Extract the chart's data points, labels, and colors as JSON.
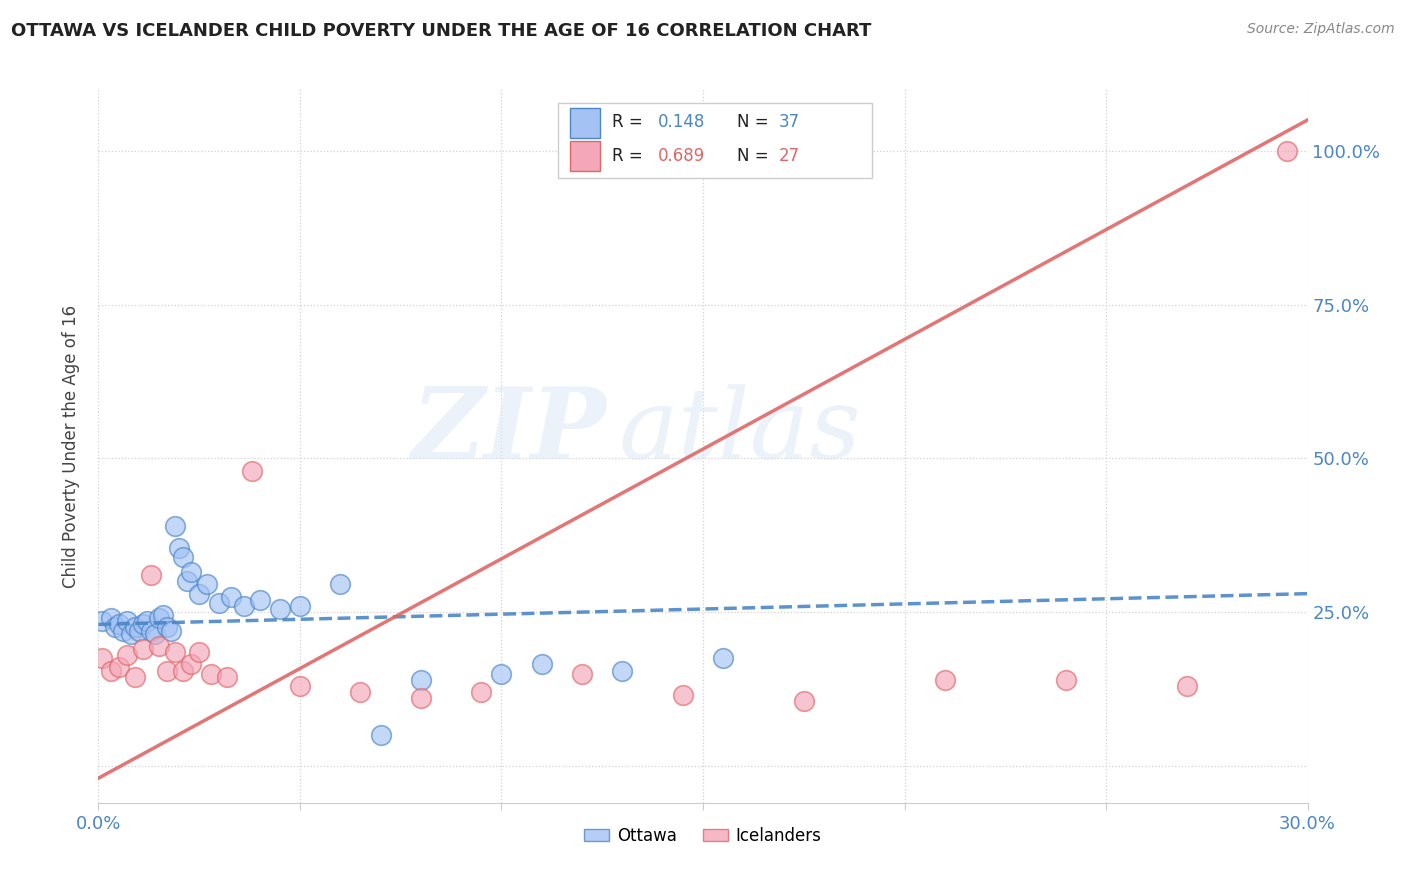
{
  "title": "OTTAWA VS ICELANDER CHILD POVERTY UNDER THE AGE OF 16 CORRELATION CHART",
  "source": "Source: ZipAtlas.com",
  "ylabel": "Child Poverty Under the Age of 16",
  "yticks": [
    0.0,
    0.25,
    0.5,
    0.75,
    1.0
  ],
  "ytick_labels": [
    "",
    "25.0%",
    "50.0%",
    "75.0%",
    "100.0%"
  ],
  "xlim": [
    0.0,
    0.3
  ],
  "ylim": [
    -0.06,
    1.1
  ],
  "legend_r_ottawa": "R = 0.148",
  "legend_n_ottawa": "N = 37",
  "legend_r_icelander": "R = 0.689",
  "legend_n_icelander": "N = 27",
  "ottawa_color": "#a4c2f4",
  "icelander_color": "#f4a7b9",
  "ottawa_line_color": "#4a86c8",
  "icelander_line_color": "#e06666",
  "background_color": "#ffffff",
  "grid_color": "#cccccc",
  "ottawa_points_x": [
    0.001,
    0.003,
    0.004,
    0.005,
    0.006,
    0.007,
    0.008,
    0.009,
    0.01,
    0.011,
    0.012,
    0.013,
    0.014,
    0.015,
    0.016,
    0.017,
    0.018,
    0.019,
    0.02,
    0.021,
    0.022,
    0.023,
    0.025,
    0.027,
    0.03,
    0.033,
    0.036,
    0.04,
    0.045,
    0.05,
    0.06,
    0.07,
    0.08,
    0.1,
    0.11,
    0.13,
    0.155
  ],
  "ottawa_points_y": [
    0.235,
    0.24,
    0.225,
    0.23,
    0.22,
    0.235,
    0.215,
    0.225,
    0.22,
    0.23,
    0.235,
    0.22,
    0.215,
    0.24,
    0.245,
    0.225,
    0.22,
    0.39,
    0.355,
    0.34,
    0.3,
    0.315,
    0.28,
    0.295,
    0.265,
    0.275,
    0.26,
    0.27,
    0.255,
    0.26,
    0.295,
    0.05,
    0.14,
    0.15,
    0.165,
    0.155,
    0.175
  ],
  "icelander_points_x": [
    0.001,
    0.003,
    0.005,
    0.007,
    0.009,
    0.011,
    0.013,
    0.015,
    0.017,
    0.019,
    0.021,
    0.023,
    0.025,
    0.028,
    0.032,
    0.038,
    0.05,
    0.065,
    0.08,
    0.095,
    0.12,
    0.145,
    0.175,
    0.21,
    0.24,
    0.27,
    0.295
  ],
  "icelander_points_y": [
    0.175,
    0.155,
    0.16,
    0.18,
    0.145,
    0.19,
    0.31,
    0.195,
    0.155,
    0.185,
    0.155,
    0.165,
    0.185,
    0.15,
    0.145,
    0.48,
    0.13,
    0.12,
    0.11,
    0.12,
    0.15,
    0.115,
    0.105,
    0.14,
    0.14,
    0.13,
    1.0
  ],
  "watermark_line1": "ZIP",
  "watermark_line2": "atlas",
  "ottawa_trendline_x": [
    0.0,
    0.3
  ],
  "ottawa_trendline_y": [
    0.23,
    0.28
  ],
  "icelander_trendline_x": [
    0.0,
    0.3
  ],
  "icelander_trendline_y": [
    -0.02,
    1.05
  ]
}
